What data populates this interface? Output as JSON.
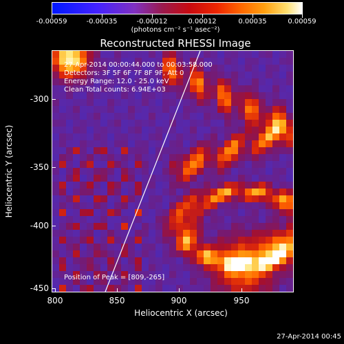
{
  "colorbar": {
    "tick_labels": [
      "-0.00059",
      "-0.00035",
      "-0.00012",
      "0.00012",
      "0.00035",
      "0.00059"
    ],
    "units": "(photons cm⁻² s⁻¹ asec⁻²)"
  },
  "plot": {
    "title": "Reconstructed RHESSI Image",
    "info": {
      "time_range": "27-Apr-2014 00:00:44.000 to 00:03:58.000",
      "detectors": "Detectors: 3F 5F 6F 7F 8F 9F, Att 0",
      "energy_range": "Energy Range: 12.0 - 25.0 keV",
      "clean": "Clean     Total counts: 6.94E+03",
      "peak": "Position of Peak = [809,-265]"
    }
  },
  "axes": {
    "x_title": "Heliocentric X (arcsec)",
    "y_title": "Heliocentric Y (arcsec)",
    "x_tick_labels": [
      "800",
      "850",
      "900",
      "950"
    ],
    "y_tick_labels": [
      "-300",
      "-350",
      "-400",
      "-450"
    ]
  },
  "footer": {
    "timestamp": "27-Apr-2014 00:45"
  },
  "colors": {
    "background": "#000000",
    "colormap_low": "#0018ff",
    "colormap_mid": "#9a1a4e",
    "colormap_high": "#ffffff",
    "limb_line": "#ffffff"
  }
}
